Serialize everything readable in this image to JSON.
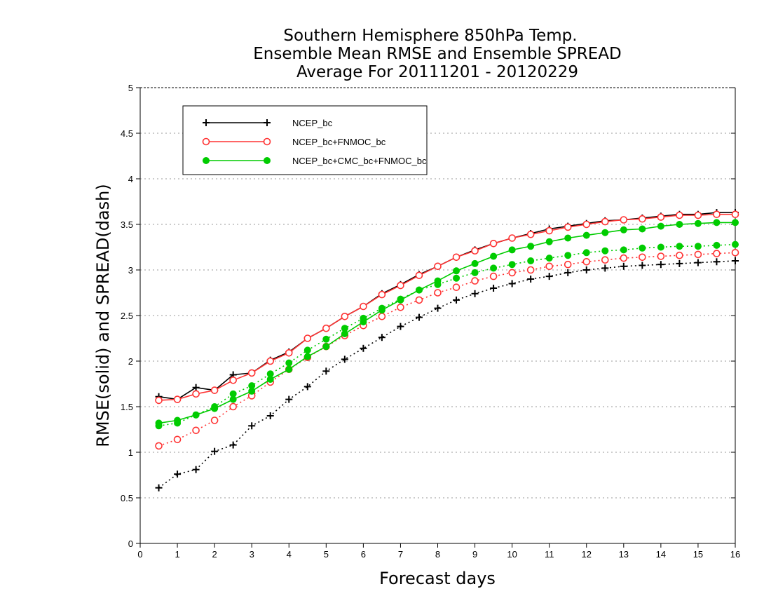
{
  "chart_data": {
    "type": "line",
    "title_lines": [
      "Southern Hemisphere 850hPa Temp.",
      "Ensemble Mean RMSE and Ensemble SPREAD",
      "Average For 20111201 - 20120229"
    ],
    "xlabel": "Forecast days",
    "ylabel": "RMSE(solid) and SPREAD(dash)",
    "xlim": [
      0,
      16
    ],
    "ylim": [
      0,
      5
    ],
    "x_ticks": [
      "0",
      "1",
      "2",
      "3",
      "4",
      "5",
      "6",
      "7",
      "8",
      "9",
      "10",
      "11",
      "12",
      "13",
      "14",
      "15",
      "16"
    ],
    "y_ticks": [
      "0",
      "0.5",
      "1",
      "1.5",
      "2",
      "2.5",
      "3",
      "3.5",
      "4",
      "4.5",
      "5"
    ],
    "grid": "horizontal dotted",
    "legend_position": "top-left",
    "x": [
      0.5,
      1,
      1.5,
      2,
      2.5,
      3,
      3.5,
      4,
      4.5,
      5,
      5.5,
      6,
      6.5,
      7,
      7.5,
      8,
      8.5,
      9,
      9.5,
      10,
      10.5,
      11,
      11.5,
      12,
      12.5,
      13,
      13.5,
      14,
      14.5,
      15,
      15.5,
      16
    ],
    "series": [
      {
        "name": "NCEP_bc",
        "color": "#000000",
        "marker": "plus",
        "rmse": [
          1.61,
          1.58,
          1.71,
          1.68,
          1.85,
          1.87,
          2.01,
          2.1,
          2.25,
          2.36,
          2.49,
          2.6,
          2.74,
          2.84,
          2.95,
          3.04,
          3.14,
          3.22,
          3.29,
          3.35,
          3.4,
          3.45,
          3.48,
          3.51,
          3.54,
          3.55,
          3.57,
          3.59,
          3.61,
          3.61,
          3.63,
          3.63
        ],
        "spread": [
          0.61,
          0.76,
          0.81,
          1.01,
          1.08,
          1.29,
          1.4,
          1.58,
          1.72,
          1.89,
          2.02,
          2.14,
          2.26,
          2.38,
          2.48,
          2.58,
          2.67,
          2.74,
          2.8,
          2.85,
          2.9,
          2.93,
          2.97,
          3.0,
          3.02,
          3.04,
          3.05,
          3.06,
          3.07,
          3.08,
          3.09,
          3.1
        ]
      },
      {
        "name": "NCEP_bc+FNMOC_bc",
        "color": "#ff3333",
        "marker": "open-circle",
        "rmse": [
          1.57,
          1.58,
          1.64,
          1.68,
          1.79,
          1.87,
          2.0,
          2.09,
          2.25,
          2.36,
          2.49,
          2.6,
          2.73,
          2.83,
          2.94,
          3.04,
          3.14,
          3.21,
          3.29,
          3.35,
          3.39,
          3.43,
          3.47,
          3.5,
          3.53,
          3.55,
          3.56,
          3.58,
          3.6,
          3.6,
          3.61,
          3.61
        ],
        "spread": [
          1.07,
          1.14,
          1.24,
          1.35,
          1.5,
          1.62,
          1.77,
          1.91,
          2.04,
          2.16,
          2.28,
          2.39,
          2.49,
          2.59,
          2.67,
          2.75,
          2.81,
          2.88,
          2.93,
          2.97,
          3.0,
          3.04,
          3.06,
          3.09,
          3.11,
          3.13,
          3.14,
          3.15,
          3.16,
          3.17,
          3.18,
          3.19
        ]
      },
      {
        "name": "NCEP_bc+CMC_bc+FNMOC_bc",
        "color": "#00cc00",
        "marker": "filled-circle",
        "rmse": [
          1.32,
          1.35,
          1.41,
          1.48,
          1.58,
          1.67,
          1.8,
          1.91,
          2.05,
          2.16,
          2.3,
          2.43,
          2.56,
          2.67,
          2.78,
          2.88,
          2.99,
          3.07,
          3.15,
          3.22,
          3.26,
          3.31,
          3.35,
          3.38,
          3.41,
          3.44,
          3.45,
          3.48,
          3.5,
          3.51,
          3.52,
          3.52
        ],
        "spread": [
          1.29,
          1.32,
          1.41,
          1.5,
          1.64,
          1.73,
          1.86,
          1.98,
          2.12,
          2.24,
          2.36,
          2.47,
          2.58,
          2.68,
          2.78,
          2.84,
          2.91,
          2.97,
          3.02,
          3.06,
          3.1,
          3.13,
          3.16,
          3.19,
          3.21,
          3.22,
          3.24,
          3.25,
          3.26,
          3.26,
          3.27,
          3.28
        ]
      }
    ]
  }
}
